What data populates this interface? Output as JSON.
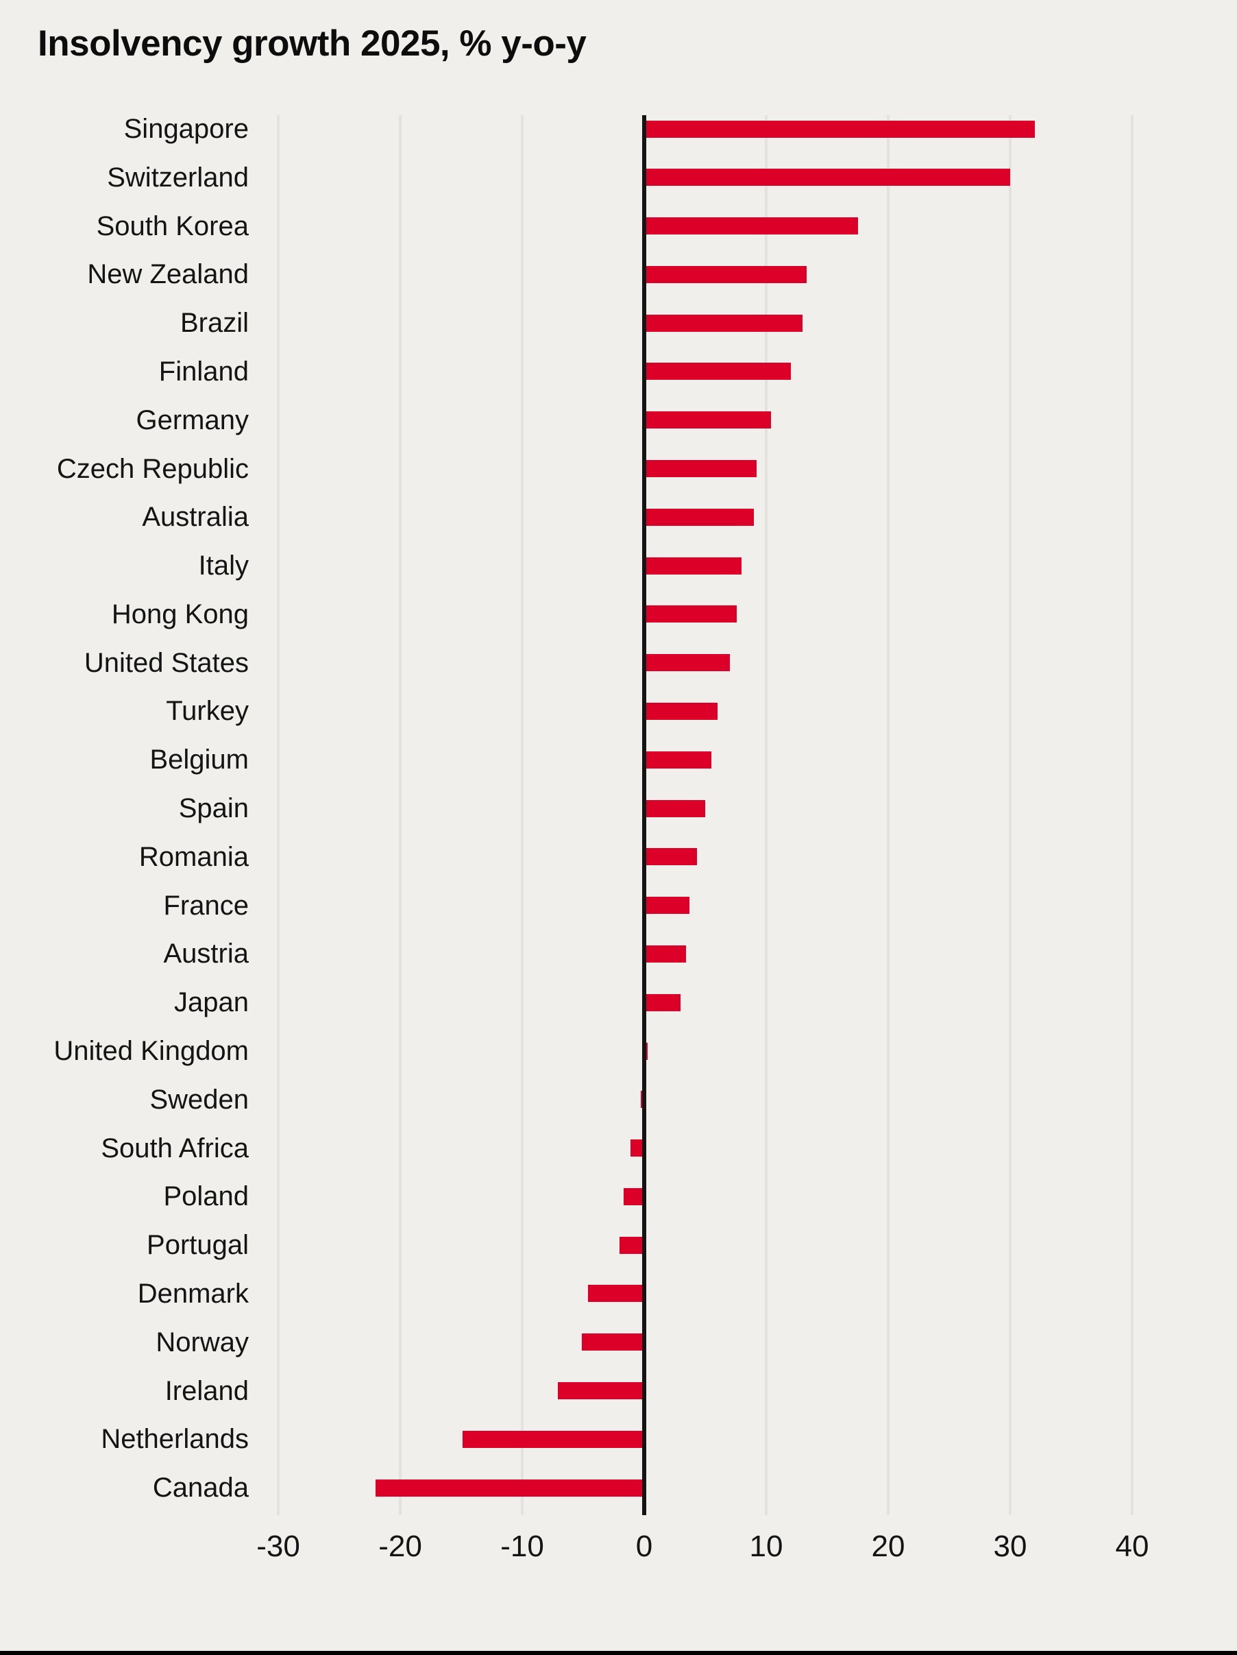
{
  "chart_data": {
    "type": "bar",
    "orientation": "horizontal",
    "title": "Insolvency growth 2025, % y-o-y",
    "xlabel": "",
    "ylabel": "",
    "xlim": [
      -30,
      40
    ],
    "xticks": [
      -30,
      -20,
      -10,
      0,
      10,
      20,
      30,
      40
    ],
    "xtick_labels": [
      "-30",
      "-20",
      "-10",
      "0",
      "10",
      "20",
      "30",
      "40"
    ],
    "grid": "vertical",
    "legend": "none",
    "categories": [
      "Singapore",
      "Switzerland",
      "South Korea",
      "New Zealand",
      "Brazil",
      "Finland",
      "Germany",
      "Czech Republic",
      "Australia",
      "Italy",
      "Hong Kong",
      "United States",
      "Turkey",
      "Belgium",
      "Spain",
      "Romania",
      "France",
      "Austria",
      "Japan",
      "United Kingdom",
      "Sweden",
      "South Africa",
      "Poland",
      "Portugal",
      "Denmark",
      "Norway",
      "Ireland",
      "Netherlands",
      "Canada"
    ],
    "values": [
      32,
      30,
      17.5,
      13.3,
      13,
      12,
      10.4,
      9.2,
      9,
      8,
      7.6,
      7,
      6,
      5.5,
      5,
      4.3,
      3.7,
      3.4,
      3,
      0.3,
      -0.3,
      -1.1,
      -1.7,
      -2,
      -4.6,
      -5.1,
      -7.1,
      -14.9,
      -22
    ]
  },
  "colors": {
    "bar": "#dc0028",
    "background": "#f0efec",
    "gridline": "#e3e2df",
    "zero_axis": "#141414",
    "text": "#141414",
    "bottom_rule": "#000000"
  }
}
